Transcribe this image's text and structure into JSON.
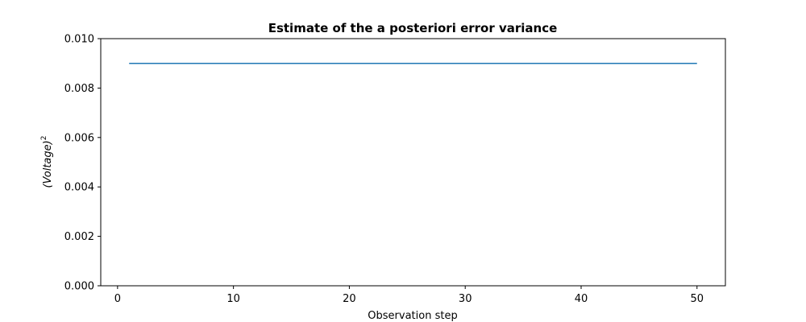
{
  "chart_data": {
    "type": "line",
    "title": "Estimate of the a posteriori error variance",
    "xlabel": "Observation step",
    "ylabel": "(Voltage)",
    "ylabel_superscript": "2",
    "xlim": [
      -1.45,
      52.45
    ],
    "ylim": [
      0,
      0.01
    ],
    "x_ticks": [
      0,
      10,
      20,
      30,
      40,
      50
    ],
    "x_tick_labels": [
      "0",
      "10",
      "20",
      "30",
      "40",
      "50"
    ],
    "y_ticks": [
      0,
      0.002,
      0.004,
      0.006,
      0.008,
      0.01
    ],
    "y_tick_labels": [
      "0.000",
      "0.002",
      "0.004",
      "0.006",
      "0.008",
      "0.010"
    ],
    "grid": false,
    "series": [
      {
        "color": "#1f77b4",
        "x": [
          1,
          50
        ],
        "y": [
          0.009,
          0.009
        ]
      }
    ]
  }
}
